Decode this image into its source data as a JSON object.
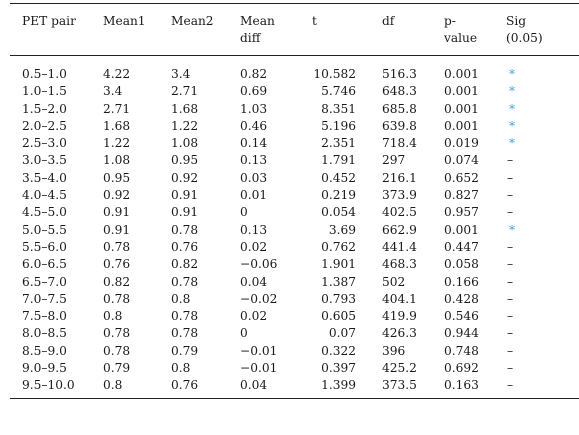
{
  "headers": {
    "pair": "PET pair",
    "mean1": "Mean1",
    "mean2": "Mean2",
    "mean_diff_line1": "Mean",
    "mean_diff_line2": "diff",
    "t": "t",
    "df": "df",
    "pvalue_line1": "p-",
    "pvalue_line2": "value",
    "sig_line1": "Sig",
    "sig_line2": "(0.05)"
  },
  "rows": [
    {
      "pair": "0.5–1.0",
      "mean1": "4.22",
      "mean2": "3.4",
      "diff": "0.82",
      "t": "10.582",
      "df": "516.3",
      "p": "0.001",
      "sig": "*"
    },
    {
      "pair": "1.0–1.5",
      "mean1": "3.4",
      "mean2": "2.71",
      "diff": "0.69",
      "t": "5.746",
      "df": "648.3",
      "p": "0.001",
      "sig": "*"
    },
    {
      "pair": "1.5–2.0",
      "mean1": "2.71",
      "mean2": "1.68",
      "diff": "1.03",
      "t": "8.351",
      "df": "685.8",
      "p": "0.001",
      "sig": "*"
    },
    {
      "pair": "2.0–2.5",
      "mean1": "1.68",
      "mean2": "1.22",
      "diff": "0.46",
      "t": "5.196",
      "df": "639.8",
      "p": "0.001",
      "sig": "*"
    },
    {
      "pair": "2.5–3.0",
      "mean1": "1.22",
      "mean2": "1.08",
      "diff": "0.14",
      "t": "2.351",
      "df": "718.4",
      "p": "0.019",
      "sig": "*"
    },
    {
      "pair": "3.0–3.5",
      "mean1": "1.08",
      "mean2": "0.95",
      "diff": "0.13",
      "t": "1.791",
      "df": "297",
      "p": "0.074",
      "sig": "–"
    },
    {
      "pair": "3.5–4.0",
      "mean1": "0.95",
      "mean2": "0.92",
      "diff": "0.03",
      "t": "0.452",
      "df": "216.1",
      "p": "0.652",
      "sig": "–"
    },
    {
      "pair": "4.0–4.5",
      "mean1": "0.92",
      "mean2": "0.91",
      "diff": "0.01",
      "t": "0.219",
      "df": "373.9",
      "p": "0.827",
      "sig": "–"
    },
    {
      "pair": "4.5–5.0",
      "mean1": "0.91",
      "mean2": "0.91",
      "diff": "0",
      "t": "0.054",
      "df": "402.5",
      "p": "0.957",
      "sig": "–"
    },
    {
      "pair": "5.0–5.5",
      "mean1": "0.91",
      "mean2": "0.78",
      "diff": "0.13",
      "t": "3.69",
      "df": "662.9",
      "p": "0.001",
      "sig": "*"
    },
    {
      "pair": "5.5–6.0",
      "mean1": "0.78",
      "mean2": "0.76",
      "diff": "0.02",
      "t": "0.762",
      "df": "441.4",
      "p": "0.447",
      "sig": "–"
    },
    {
      "pair": "6.0–6.5",
      "mean1": "0.76",
      "mean2": "0.82",
      "diff": "−0.06",
      "t": "1.901",
      "df": "468.3",
      "p": "0.058",
      "sig": "–"
    },
    {
      "pair": "6.5–7.0",
      "mean1": "0.82",
      "mean2": "0.78",
      "diff": "0.04",
      "t": "1.387",
      "df": "502",
      "p": "0.166",
      "sig": "–"
    },
    {
      "pair": "7.0–7.5",
      "mean1": "0.78",
      "mean2": "0.8",
      "diff": "−0.02",
      "t": "0.793",
      "df": "404.1",
      "p": "0.428",
      "sig": "–"
    },
    {
      "pair": "7.5–8.0",
      "mean1": "0.8",
      "mean2": "0.78",
      "diff": "0.02",
      "t": "0.605",
      "df": "419.9",
      "p": "0.546",
      "sig": "–"
    },
    {
      "pair": "8.0–8.5",
      "mean1": "0.78",
      "mean2": "0.78",
      "diff": "0",
      "t": "0.07",
      "df": "426.3",
      "p": "0.944",
      "sig": "–"
    },
    {
      "pair": "8.5–9.0",
      "mean1": "0.78",
      "mean2": "0.79",
      "diff": "−0.01",
      "t": "0.322",
      "df": "396",
      "p": "0.748",
      "sig": "–"
    },
    {
      "pair": "9.0–9.5",
      "mean1": "0.79",
      "mean2": "0.8",
      "diff": "−0.01",
      "t": "0.397",
      "df": "425.2",
      "p": "0.692",
      "sig": "–"
    },
    {
      "pair": "9.5–10.0",
      "mean1": "0.8",
      "mean2": "0.76",
      "diff": "0.04",
      "t": "1.399",
      "df": "373.5",
      "p": "0.163",
      "sig": "–"
    }
  ],
  "colors": {
    "significant_marker": "#4aa3d6",
    "text": "#1a1a1a",
    "rule": "#222222"
  }
}
